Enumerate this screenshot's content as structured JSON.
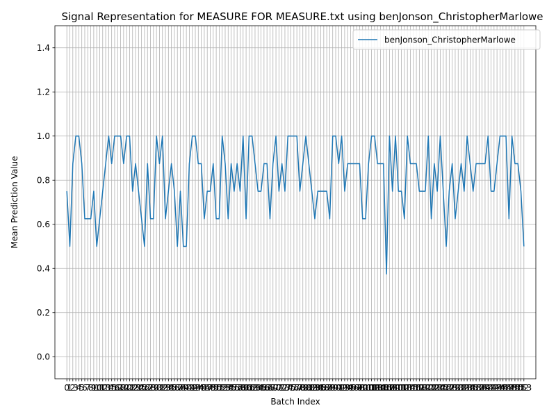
{
  "chart_data": {
    "type": "line",
    "title": "Signal Representation for MEASURE FOR MEASURE.txt using benJonson_ChristopherMarlowe",
    "xlabel": "Batch Index",
    "ylabel": "Mean Prediction Value",
    "ylim": [
      -0.1,
      1.5
    ],
    "xlim": [
      -4,
      157
    ],
    "yticks": [
      "0.0",
      "0.2",
      "0.4",
      "0.6",
      "0.8",
      "1.0",
      "1.2",
      "1.4"
    ],
    "grid": true,
    "legend_position": "top-right",
    "line_color": "#1f77b4",
    "series": [
      {
        "name": "benJonson_ChristopherMarlowe",
        "values": [
          0.75,
          0.5,
          0.875,
          1.0,
          1.0,
          0.875,
          0.625,
          0.625,
          0.625,
          0.75,
          0.5,
          0.625,
          0.75,
          0.875,
          1.0,
          0.875,
          1.0,
          1.0,
          1.0,
          0.875,
          1.0,
          1.0,
          0.75,
          0.875,
          0.75,
          0.625,
          0.5,
          0.875,
          0.625,
          0.625,
          1.0,
          0.875,
          1.0,
          0.625,
          0.75,
          0.875,
          0.75,
          0.5,
          0.75,
          0.5,
          0.5,
          0.875,
          1.0,
          1.0,
          0.875,
          0.875,
          0.625,
          0.75,
          0.75,
          0.875,
          0.625,
          0.625,
          1.0,
          0.875,
          0.625,
          0.875,
          0.75,
          0.875,
          0.75,
          1.0,
          0.625,
          1.0,
          1.0,
          0.875,
          0.75,
          0.75,
          0.875,
          0.875,
          0.625,
          0.875,
          1.0,
          0.75,
          0.875,
          0.75,
          1.0,
          1.0,
          1.0,
          1.0,
          0.75,
          0.875,
          1.0,
          0.875,
          0.75,
          0.625,
          0.75,
          0.75,
          0.75,
          0.75,
          0.625,
          1.0,
          1.0,
          0.875,
          1.0,
          0.75,
          0.875,
          0.875,
          0.875,
          0.875,
          0.875,
          0.625,
          0.625,
          0.875,
          1.0,
          1.0,
          0.875,
          0.875,
          0.875,
          0.375,
          1.0,
          0.75,
          1.0,
          0.75,
          0.75,
          0.625,
          1.0,
          0.875,
          0.875,
          0.875,
          0.75,
          0.75,
          0.75,
          1.0,
          0.625,
          0.875,
          0.75,
          1.0,
          0.75,
          0.5,
          0.75,
          0.875,
          0.625,
          0.75,
          0.875,
          0.75,
          1.0,
          0.875,
          0.75,
          0.875,
          0.875,
          0.875,
          0.875,
          1.0,
          0.75,
          0.75,
          0.875,
          1.0,
          1.0,
          1.0,
          0.625,
          1.0,
          0.875,
          0.875,
          0.75,
          0.5
        ]
      }
    ]
  }
}
